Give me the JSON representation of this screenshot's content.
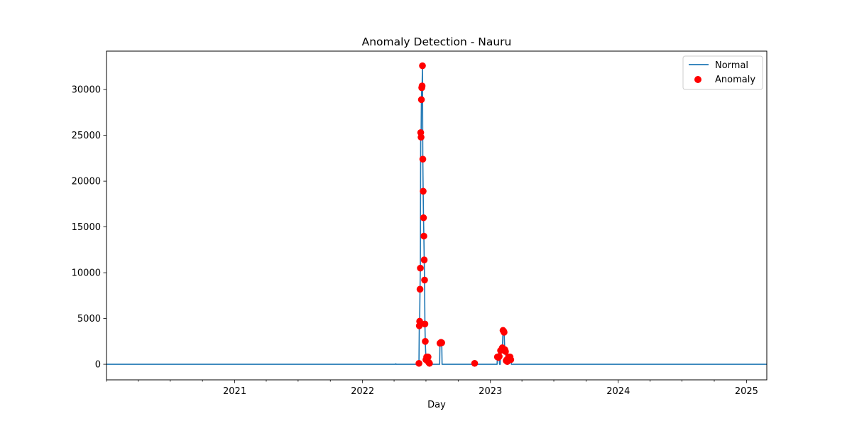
{
  "chart_data": {
    "type": "line",
    "title": "Anomaly Detection - Nauru",
    "xlabel": "Day",
    "ylabel": "",
    "xlim": [
      "2020-01-01",
      "2025-02-28"
    ],
    "ylim": [
      -1700,
      34200
    ],
    "x_ticks": [
      "2021",
      "2022",
      "2023",
      "2024",
      "2025"
    ],
    "y_ticks": [
      0,
      5000,
      10000,
      15000,
      20000,
      25000,
      30000
    ],
    "grid": false,
    "legend": {
      "position": "top-right",
      "entries": [
        "Normal",
        "Anomaly"
      ]
    },
    "colors": {
      "line": "#1f77b4",
      "anomaly": "#ff0000"
    },
    "series": [
      {
        "name": "Normal",
        "kind": "line",
        "points": [
          [
            "2020-01-01",
            0
          ],
          [
            "2022-04-05",
            0
          ],
          [
            "2022-04-06",
            60
          ],
          [
            "2022-04-07",
            0
          ],
          [
            "2022-06-10",
            0
          ],
          [
            "2022-06-11",
            100
          ],
          [
            "2022-06-12",
            4200
          ],
          [
            "2022-06-13",
            4700
          ],
          [
            "2022-06-14",
            8200
          ],
          [
            "2022-06-15",
            10500
          ],
          [
            "2022-06-16",
            25300
          ],
          [
            "2022-06-17",
            24800
          ],
          [
            "2022-06-18",
            28900
          ],
          [
            "2022-06-19",
            30200
          ],
          [
            "2022-06-20",
            30400
          ],
          [
            "2022-06-21",
            32600
          ],
          [
            "2022-06-22",
            22400
          ],
          [
            "2022-06-23",
            18900
          ],
          [
            "2022-06-24",
            16000
          ],
          [
            "2022-06-25",
            14000
          ],
          [
            "2022-06-26",
            11400
          ],
          [
            "2022-06-27",
            9200
          ],
          [
            "2022-06-28",
            4400
          ],
          [
            "2022-06-29",
            2500
          ],
          [
            "2022-07-01",
            500
          ],
          [
            "2022-07-03",
            800
          ],
          [
            "2022-07-05",
            400
          ],
          [
            "2022-07-07",
            800
          ],
          [
            "2022-07-09",
            200
          ],
          [
            "2022-07-11",
            100
          ],
          [
            "2022-07-13",
            0
          ],
          [
            "2022-08-09",
            0
          ],
          [
            "2022-08-10",
            2300
          ],
          [
            "2022-08-13",
            2400
          ],
          [
            "2022-08-15",
            2350
          ],
          [
            "2022-08-16",
            0
          ],
          [
            "2022-11-16",
            0
          ],
          [
            "2022-11-17",
            100
          ],
          [
            "2022-11-18",
            0
          ],
          [
            "2023-01-20",
            0
          ],
          [
            "2023-01-21",
            800
          ],
          [
            "2023-01-24",
            750
          ],
          [
            "2023-01-26",
            850
          ],
          [
            "2023-01-27",
            0
          ],
          [
            "2023-01-29",
            0
          ],
          [
            "2023-01-30",
            1500
          ],
          [
            "2023-02-02",
            1600
          ],
          [
            "2023-02-04",
            1800
          ],
          [
            "2023-02-06",
            3700
          ],
          [
            "2023-02-08",
            3600
          ],
          [
            "2023-02-09",
            3500
          ],
          [
            "2023-02-11",
            1600
          ],
          [
            "2023-02-13",
            1400
          ],
          [
            "2023-02-15",
            400
          ],
          [
            "2023-02-17",
            500
          ],
          [
            "2023-02-18",
            300
          ],
          [
            "2023-02-20",
            0
          ],
          [
            "2023-02-22",
            800
          ],
          [
            "2023-02-26",
            800
          ],
          [
            "2023-02-28",
            500
          ],
          [
            "2023-03-02",
            0
          ],
          [
            "2025-02-28",
            0
          ]
        ]
      },
      {
        "name": "Anomaly",
        "kind": "scatter",
        "points": [
          [
            "2022-06-11",
            100
          ],
          [
            "2022-06-12",
            4200
          ],
          [
            "2022-06-13",
            4700
          ],
          [
            "2022-06-14",
            8200
          ],
          [
            "2022-06-15",
            10500
          ],
          [
            "2022-06-16",
            25300
          ],
          [
            "2022-06-17",
            24800
          ],
          [
            "2022-06-18",
            28900
          ],
          [
            "2022-06-19",
            30200
          ],
          [
            "2022-06-20",
            30400
          ],
          [
            "2022-06-21",
            32600
          ],
          [
            "2022-06-22",
            22400
          ],
          [
            "2022-06-23",
            18900
          ],
          [
            "2022-06-24",
            16000
          ],
          [
            "2022-06-25",
            14000
          ],
          [
            "2022-06-26",
            11400
          ],
          [
            "2022-06-27",
            9200
          ],
          [
            "2022-06-28",
            4400
          ],
          [
            "2022-06-29",
            2500
          ],
          [
            "2022-07-01",
            500
          ],
          [
            "2022-07-03",
            800
          ],
          [
            "2022-07-05",
            400
          ],
          [
            "2022-07-07",
            800
          ],
          [
            "2022-07-09",
            200
          ],
          [
            "2022-07-11",
            100
          ],
          [
            "2022-08-10",
            2300
          ],
          [
            "2022-08-13",
            2400
          ],
          [
            "2022-08-15",
            2350
          ],
          [
            "2022-11-17",
            100
          ],
          [
            "2023-01-21",
            800
          ],
          [
            "2023-01-24",
            750
          ],
          [
            "2023-01-26",
            850
          ],
          [
            "2023-01-30",
            1500
          ],
          [
            "2023-02-02",
            1600
          ],
          [
            "2023-02-04",
            1800
          ],
          [
            "2023-02-06",
            3700
          ],
          [
            "2023-02-08",
            3600
          ],
          [
            "2023-02-09",
            3500
          ],
          [
            "2023-02-11",
            1600
          ],
          [
            "2023-02-13",
            1400
          ],
          [
            "2023-02-15",
            400
          ],
          [
            "2023-02-17",
            500
          ],
          [
            "2023-02-18",
            300
          ],
          [
            "2023-02-22",
            800
          ],
          [
            "2023-02-26",
            800
          ],
          [
            "2023-02-28",
            500
          ]
        ]
      }
    ]
  }
}
